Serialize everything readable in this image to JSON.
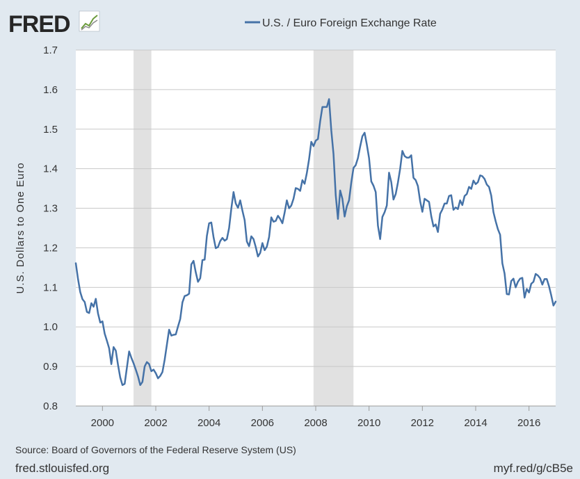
{
  "header": {
    "logo_text": "FRED",
    "legend_label": "U.S. / Euro Foreign Exchange Rate"
  },
  "footer": {
    "source": "Source: Board of Governors of the Federal Reserve System (US)",
    "site": "fred.stlouisfed.org",
    "shortlink": "myf.red/g/cB5e"
  },
  "colors": {
    "line": "#4572a7",
    "recession": "#e1e1e1",
    "grid": "#c8c8c8",
    "plot_bg": "#ffffff",
    "page_bg": "#e1e9f0"
  },
  "chart_data": {
    "type": "line",
    "title": "U.S. / Euro Foreign Exchange Rate",
    "xlabel": "",
    "ylabel": "U.S. Dollars to One Euro",
    "xlim": [
      1999.0,
      2017.0
    ],
    "ylim": [
      0.8,
      1.7
    ],
    "x_ticks": [
      2000,
      2002,
      2004,
      2006,
      2008,
      2010,
      2012,
      2014,
      2016
    ],
    "y_ticks": [
      0.8,
      0.9,
      1.0,
      1.1,
      1.2,
      1.3,
      1.4,
      1.5,
      1.6,
      1.7
    ],
    "y_tick_format": 1,
    "grid": "horizontal",
    "legend": "top-center",
    "recessions": [
      {
        "start": "2001-03",
        "end": "2001-11"
      },
      {
        "start": "2007-12",
        "end": "2009-06"
      }
    ],
    "series": [
      {
        "name": "U.S. / Euro Foreign Exchange Rate",
        "start": "1999-01",
        "frequency": "monthly",
        "values": [
          1.161,
          1.121,
          1.088,
          1.07,
          1.063,
          1.038,
          1.035,
          1.06,
          1.051,
          1.071,
          1.034,
          1.011,
          1.014,
          0.983,
          0.965,
          0.946,
          0.906,
          0.949,
          0.94,
          0.904,
          0.872,
          0.853,
          0.856,
          0.897,
          0.938,
          0.922,
          0.908,
          0.892,
          0.875,
          0.853,
          0.861,
          0.9,
          0.911,
          0.906,
          0.888,
          0.892,
          0.883,
          0.87,
          0.876,
          0.886,
          0.917,
          0.955,
          0.993,
          0.978,
          0.98,
          0.981,
          1.001,
          1.02,
          1.062,
          1.078,
          1.08,
          1.084,
          1.158,
          1.167,
          1.138,
          1.114,
          1.123,
          1.169,
          1.17,
          1.23,
          1.262,
          1.264,
          1.227,
          1.199,
          1.202,
          1.217,
          1.225,
          1.218,
          1.222,
          1.25,
          1.299,
          1.341,
          1.312,
          1.301,
          1.32,
          1.294,
          1.27,
          1.216,
          1.204,
          1.229,
          1.222,
          1.202,
          1.178,
          1.187,
          1.212,
          1.194,
          1.203,
          1.227,
          1.277,
          1.266,
          1.268,
          1.281,
          1.273,
          1.262,
          1.289,
          1.32,
          1.3,
          1.307,
          1.324,
          1.351,
          1.349,
          1.344,
          1.371,
          1.362,
          1.389,
          1.424,
          1.468,
          1.457,
          1.471,
          1.475,
          1.52,
          1.556,
          1.556,
          1.556,
          1.576,
          1.497,
          1.437,
          1.333,
          1.273,
          1.345,
          1.324,
          1.279,
          1.305,
          1.32,
          1.365,
          1.402,
          1.409,
          1.427,
          1.456,
          1.482,
          1.491,
          1.461,
          1.427,
          1.368,
          1.357,
          1.341,
          1.256,
          1.222,
          1.278,
          1.29,
          1.307,
          1.39,
          1.366,
          1.322,
          1.336,
          1.365,
          1.4,
          1.445,
          1.432,
          1.428,
          1.428,
          1.434,
          1.377,
          1.371,
          1.356,
          1.318,
          1.291,
          1.324,
          1.32,
          1.316,
          1.28,
          1.254,
          1.259,
          1.24,
          1.286,
          1.297,
          1.312,
          1.312,
          1.331,
          1.333,
          1.296,
          1.302,
          1.298,
          1.32,
          1.308,
          1.331,
          1.336,
          1.354,
          1.349,
          1.37,
          1.361,
          1.366,
          1.383,
          1.381,
          1.374,
          1.36,
          1.354,
          1.332,
          1.29,
          1.267,
          1.247,
          1.233,
          1.161,
          1.135,
          1.083,
          1.082,
          1.116,
          1.122,
          1.1,
          1.114,
          1.122,
          1.124,
          1.074,
          1.096,
          1.087,
          1.109,
          1.114,
          1.134,
          1.13,
          1.123,
          1.107,
          1.121,
          1.121,
          1.103,
          1.08,
          1.054,
          1.064
        ]
      }
    ]
  }
}
